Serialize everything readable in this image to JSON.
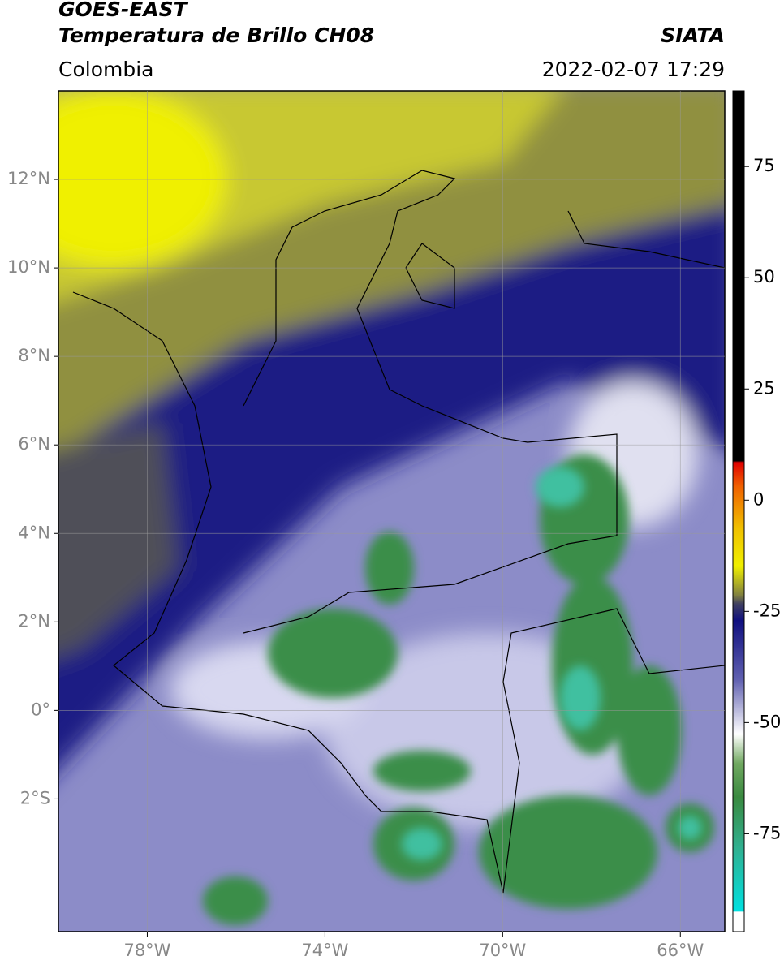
{
  "header": {
    "title1": "GOES-EAST",
    "title2": "Temperatura de Brillo CH08",
    "source": "SIATA",
    "region": "Colombia",
    "datetime": "2022-02-07 17:29"
  },
  "map": {
    "lonlim": [
      -80,
      -65
    ],
    "latlim": [
      -5,
      14
    ],
    "lon_ticks": [
      {
        "value": -78,
        "label": "78°W"
      },
      {
        "value": -74,
        "label": "74°W"
      },
      {
        "value": -70,
        "label": "70°W"
      },
      {
        "value": -66,
        "label": "66°W"
      }
    ],
    "lat_ticks": [
      {
        "value": 12,
        "label": "12°N"
      },
      {
        "value": 10,
        "label": "10°N"
      },
      {
        "value": 8,
        "label": "8°N"
      },
      {
        "value": 6,
        "label": "6°N"
      },
      {
        "value": 4,
        "label": "4°N"
      },
      {
        "value": 2,
        "label": "2°N"
      },
      {
        "value": 0,
        "label": "0°"
      },
      {
        "value": -2,
        "label": "2°S"
      }
    ]
  },
  "colorbar": {
    "lim": [
      -97,
      92
    ],
    "ticks": [
      75,
      50,
      25,
      0,
      -25,
      -50,
      -75
    ]
  }
}
